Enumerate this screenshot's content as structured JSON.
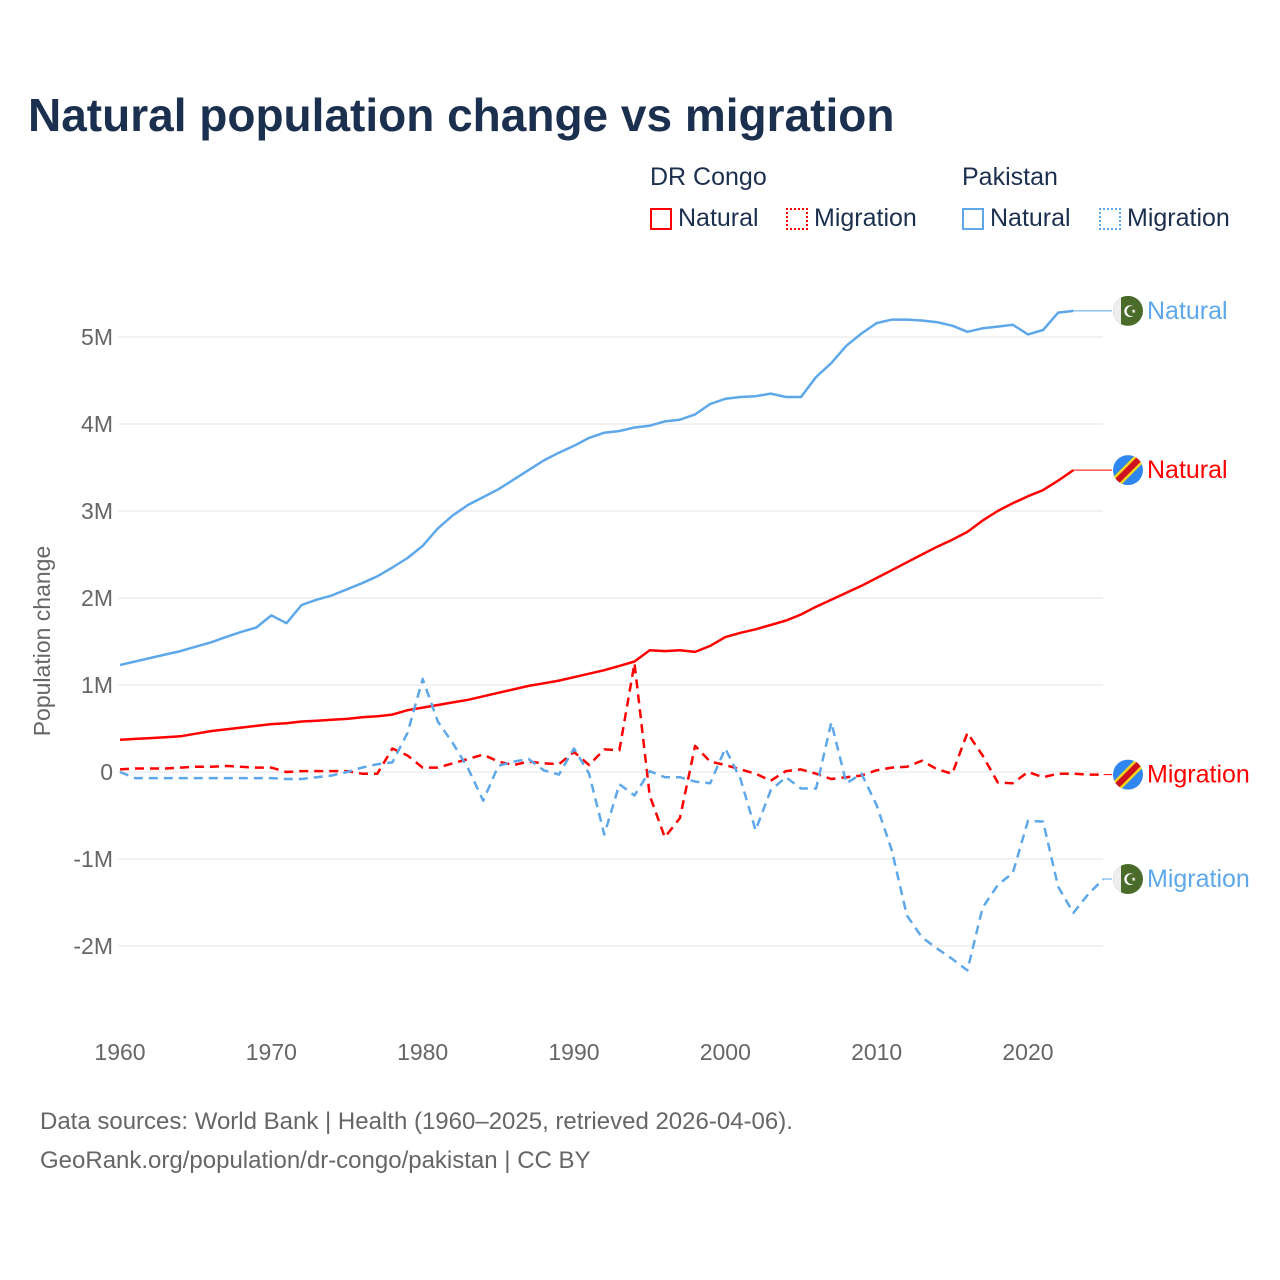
{
  "chart_data": {
    "type": "line",
    "title": "Natural population change vs migration",
    "xlabel": "",
    "ylabel": "Population change",
    "xlim": [
      1960,
      2025
    ],
    "ylim": [
      -2.6,
      5.6
    ],
    "x_ticks": [
      "1960",
      "1970",
      "1980",
      "1990",
      "2000",
      "2010",
      "2020"
    ],
    "y_ticks": [
      {
        "v": 5,
        "label": "5M"
      },
      {
        "v": 4,
        "label": "4M"
      },
      {
        "v": 3,
        "label": "3M"
      },
      {
        "v": 2,
        "label": "2M"
      },
      {
        "v": 1,
        "label": "1M"
      },
      {
        "v": 0,
        "label": "0"
      },
      {
        "v": -1,
        "label": "-1M"
      },
      {
        "v": -2,
        "label": "-2M"
      }
    ],
    "grid": true,
    "legend_groups": [
      {
        "country": "DR Congo",
        "items": [
          "Natural",
          "Migration"
        ],
        "color": "#ff0000"
      },
      {
        "country": "Pakistan",
        "items": [
          "Natural",
          "Migration"
        ],
        "color": "#5ea8ea"
      }
    ],
    "series": [
      {
        "name": "Natural",
        "country": "DR Congo",
        "color": "#ff0000",
        "dashed": false,
        "start_year": 1960,
        "values_millions": [
          0.37,
          0.38,
          0.39,
          0.4,
          0.41,
          0.44,
          0.47,
          0.49,
          0.51,
          0.53,
          0.55,
          0.56,
          0.58,
          0.59,
          0.6,
          0.61,
          0.63,
          0.64,
          0.66,
          0.71,
          0.74,
          0.77,
          0.8,
          0.83,
          0.87,
          0.91,
          0.95,
          0.99,
          1.02,
          1.05,
          1.09,
          1.13,
          1.17,
          1.22,
          1.27,
          1.4,
          1.39,
          1.4,
          1.38,
          1.45,
          1.55,
          1.6,
          1.64,
          1.69,
          1.74,
          1.81,
          1.9,
          1.98,
          2.06,
          2.14,
          2.23,
          2.32,
          2.41,
          2.5,
          2.59,
          2.67,
          2.76,
          2.89,
          3.0,
          3.09,
          3.17,
          3.24,
          3.35,
          3.47
        ]
      },
      {
        "name": "Migration",
        "country": "DR Congo",
        "color": "#ff0000",
        "dashed": true,
        "start_year": 1960,
        "values_millions": [
          0.03,
          0.04,
          0.04,
          0.04,
          0.05,
          0.06,
          0.06,
          0.07,
          0.06,
          0.05,
          0.05,
          0.0,
          0.01,
          0.01,
          0.01,
          0.01,
          -0.02,
          -0.02,
          0.27,
          0.19,
          0.05,
          0.05,
          0.1,
          0.15,
          0.2,
          0.12,
          0.08,
          0.12,
          0.1,
          0.09,
          0.23,
          0.08,
          0.26,
          0.25,
          1.25,
          -0.27,
          -0.75,
          -0.53,
          0.3,
          0.12,
          0.08,
          0.03,
          -0.02,
          -0.1,
          0.01,
          0.03,
          -0.02,
          -0.08,
          -0.06,
          -0.04,
          0.02,
          0.05,
          0.06,
          0.13,
          0.03,
          -0.02,
          0.45,
          0.19,
          -0.12,
          -0.13,
          0.0,
          -0.06,
          -0.02,
          -0.02,
          -0.03,
          -0.03
        ]
      },
      {
        "name": "Natural",
        "country": "Pakistan",
        "color": "#5ea8ea",
        "dashed": false,
        "start_year": 1960,
        "values_millions": [
          1.23,
          1.27,
          1.31,
          1.35,
          1.39,
          1.44,
          1.49,
          1.55,
          1.61,
          1.66,
          1.8,
          1.71,
          1.92,
          1.98,
          2.03,
          2.1,
          2.17,
          2.25,
          2.35,
          2.46,
          2.6,
          2.8,
          2.95,
          3.07,
          3.16,
          3.25,
          3.36,
          3.47,
          3.58,
          3.67,
          3.75,
          3.84,
          3.9,
          3.92,
          3.96,
          3.98,
          4.03,
          4.05,
          4.11,
          4.23,
          4.29,
          4.31,
          4.32,
          4.35,
          4.31,
          4.31,
          4.54,
          4.7,
          4.9,
          5.04,
          5.16,
          5.2,
          5.2,
          5.19,
          5.17,
          5.13,
          5.06,
          5.1,
          5.12,
          5.14,
          5.03,
          5.08,
          5.28,
          5.3
        ]
      },
      {
        "name": "Migration",
        "country": "Pakistan",
        "color": "#5ea8ea",
        "dashed": true,
        "start_year": 1960,
        "values_millions": [
          0.0,
          -0.07,
          -0.07,
          -0.07,
          -0.07,
          -0.07,
          -0.07,
          -0.07,
          -0.07,
          -0.07,
          -0.07,
          -0.08,
          -0.08,
          -0.06,
          -0.04,
          0.0,
          0.05,
          0.09,
          0.11,
          0.45,
          1.07,
          0.58,
          0.33,
          0.04,
          -0.33,
          0.07,
          0.12,
          0.15,
          0.02,
          -0.03,
          0.27,
          -0.02,
          -0.72,
          -0.14,
          -0.27,
          0.01,
          -0.06,
          -0.06,
          -0.11,
          -0.13,
          0.27,
          -0.08,
          -0.67,
          -0.21,
          -0.06,
          -0.19,
          -0.19,
          0.57,
          -0.13,
          -0.02,
          -0.38,
          -0.9,
          -1.65,
          -1.9,
          -2.03,
          -2.15,
          -2.28,
          -1.56,
          -1.3,
          -1.16,
          -0.56,
          -0.57,
          -1.32,
          -1.62,
          -1.4,
          -1.23
        ]
      }
    ],
    "end_labels": [
      {
        "series": 2,
        "text": "Natural",
        "flag": "pakistan-flag"
      },
      {
        "series": 0,
        "text": "Natural",
        "flag": "dr-congo-flag"
      },
      {
        "series": 1,
        "text": "Migration",
        "flag": "dr-congo-flag"
      },
      {
        "series": 3,
        "text": "Migration",
        "flag": "pakistan-flag"
      }
    ]
  },
  "footer": {
    "line1": "Data sources: World Bank | Health (1960–2025, retrieved 2026-04-06).",
    "line2": "GeoRank.org/population/dr-congo/pakistan | CC BY"
  }
}
